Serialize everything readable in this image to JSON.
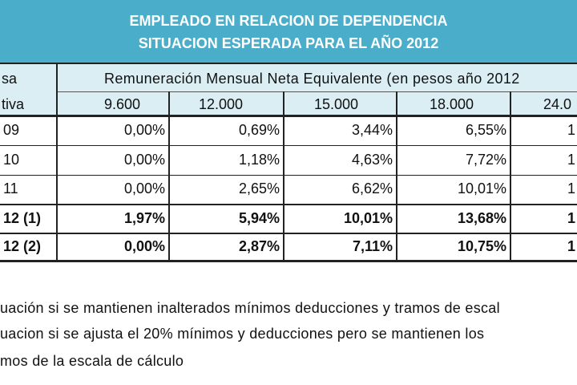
{
  "title": {
    "line1": "EMPLEADO EN RELACION DE DEPENDENCIA",
    "line2": "SITUACION ESPERADA PARA EL AÑO 2012"
  },
  "header": {
    "left_label_top": "sa",
    "left_label_bottom": "tiva",
    "span_label": "Remuneración Mensual Neta Equivalente (en pesos año 2012",
    "columns": [
      "9.600",
      "12.000",
      "15.000",
      "18.000",
      "24.0"
    ]
  },
  "rows": [
    {
      "label": "09",
      "values": [
        "0,00%",
        "0,69%",
        "3,44%",
        "6,55%",
        "1"
      ]
    },
    {
      "label": "10",
      "values": [
        "0,00%",
        "1,18%",
        "4,63%",
        "7,72%",
        "1"
      ]
    },
    {
      "label": "11",
      "values": [
        "0,00%",
        "2,65%",
        "6,62%",
        "10,01%",
        "1"
      ]
    },
    {
      "label": "12 (1)",
      "values": [
        "1,97%",
        "5,94%",
        "10,01%",
        "13,68%",
        "1"
      ]
    },
    {
      "label": "12 (2)",
      "values": [
        "0,00%",
        "2,87%",
        "7,11%",
        "10,75%",
        "1"
      ]
    }
  ],
  "notes": [
    "uación si se mantienen inalterados mínimos deducciones y tramos de escal",
    "uacion si se ajusta el 20% mínimos y deducciones pero se mantienen los",
    "mos de la escala de cálculo"
  ],
  "colors": {
    "title_band": "#4aaecb",
    "header_fill": "#daeef4"
  }
}
